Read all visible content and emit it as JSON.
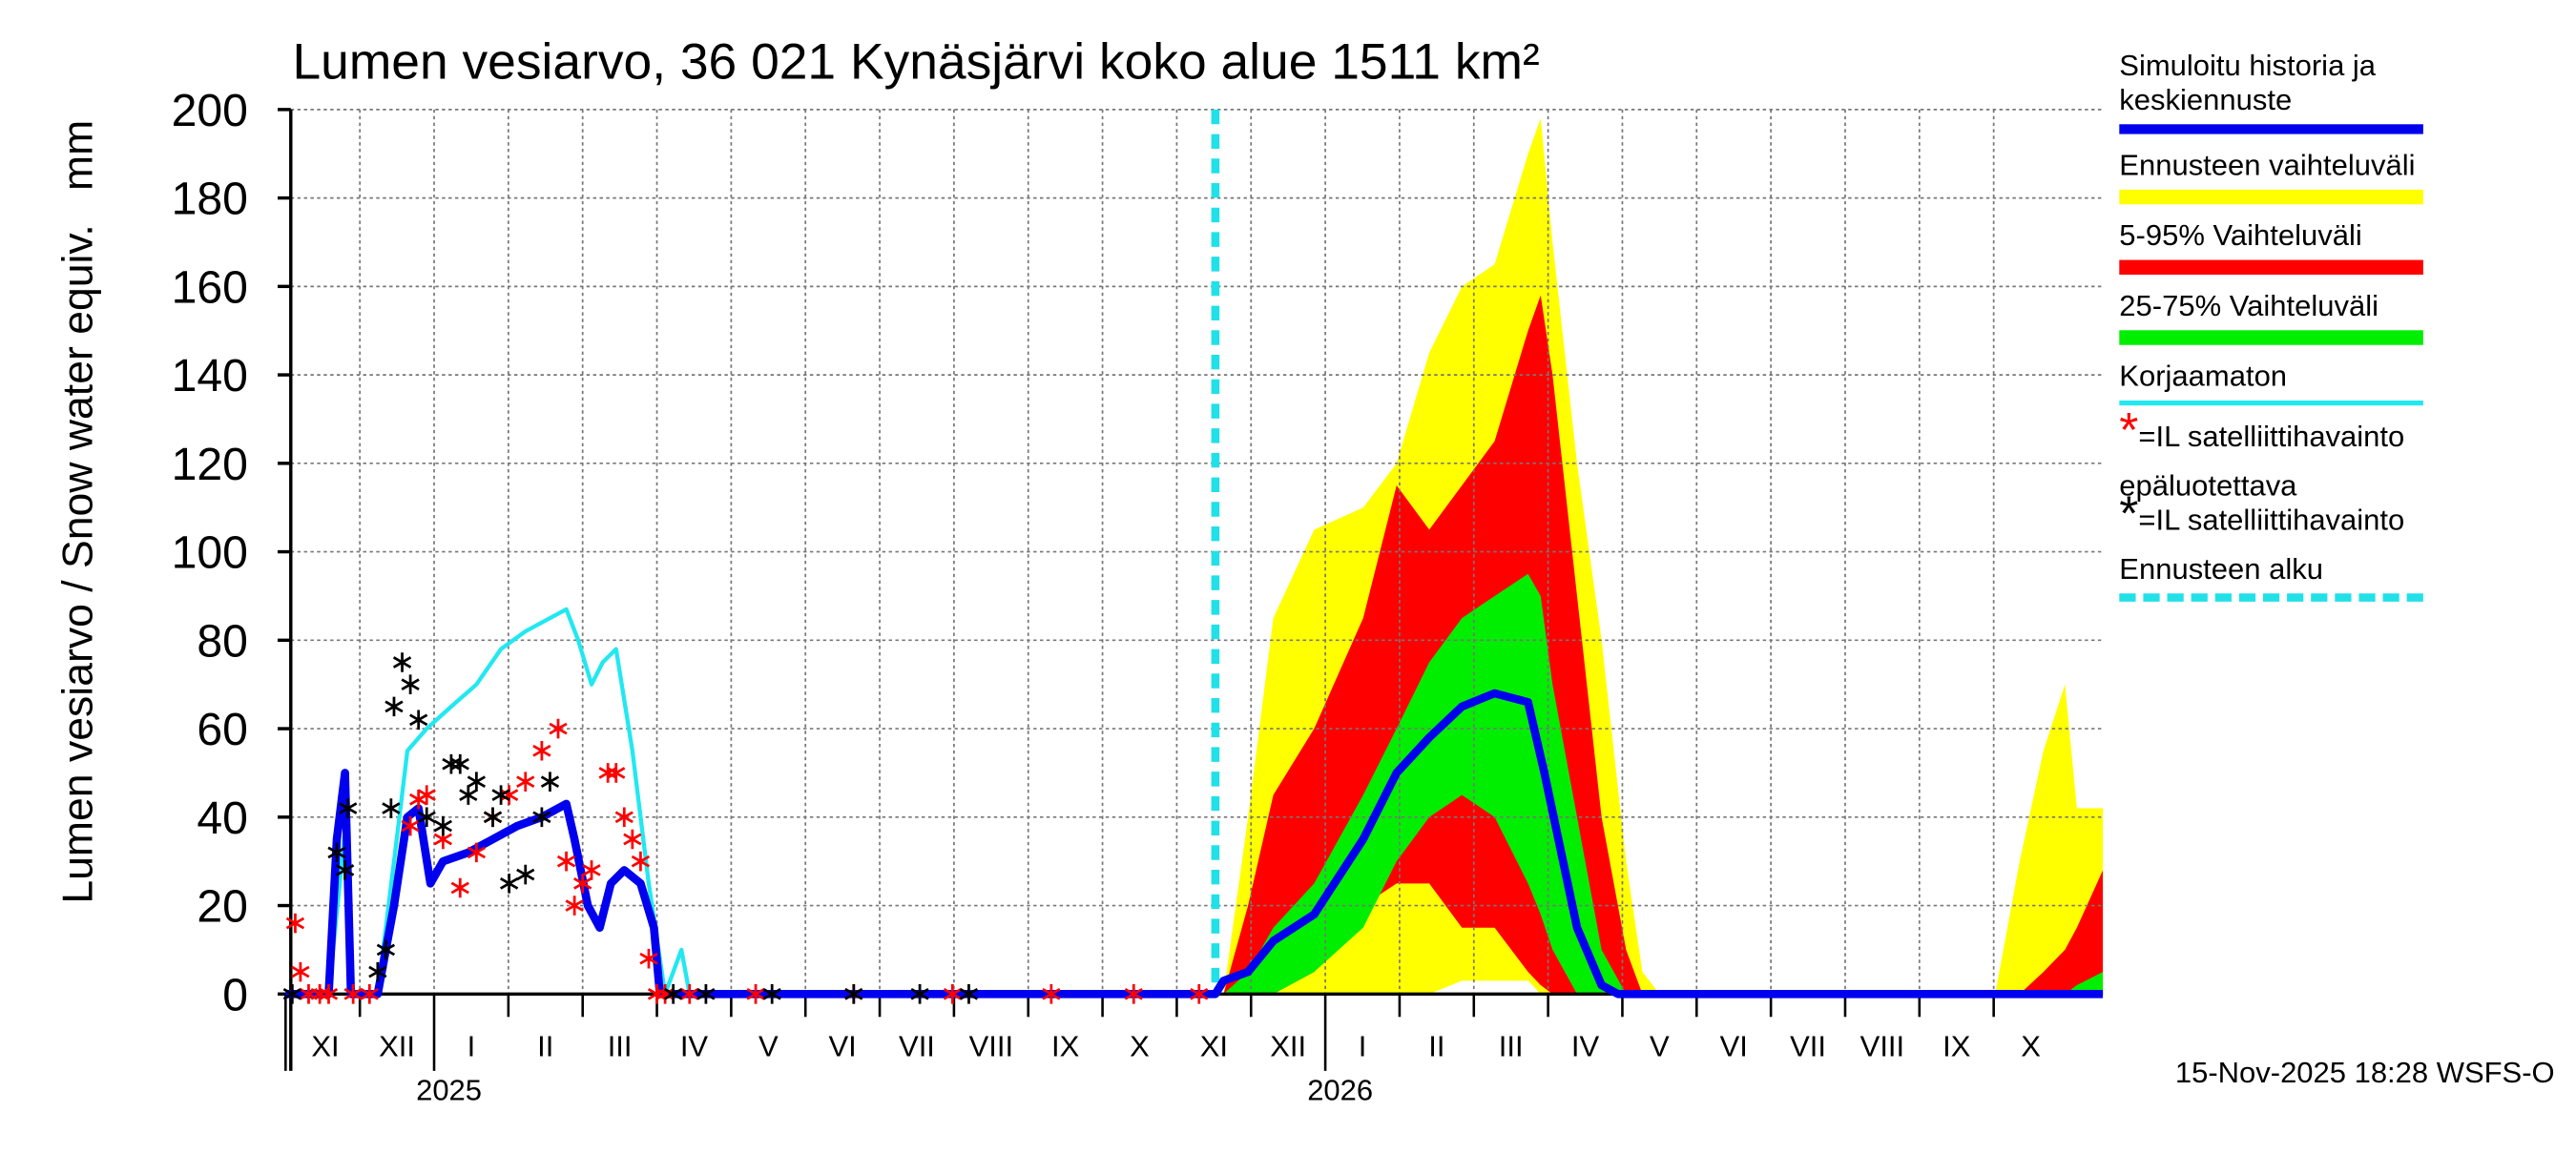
{
  "chart_data": {
    "type": "snow_forecast",
    "title": "Lumen vesiarvo, 36 021 Kynäsjärvi koko alue 1511 km²",
    "ylabel": "Lumen vesiarvo / Snow water equiv.",
    "yunit": "mm",
    "footer": "15-Nov-2025 18:28 WSFS-O",
    "categories": [
      "XI",
      "XII",
      "I",
      "II",
      "III",
      "IV",
      "V",
      "VI",
      "VII",
      "VIII",
      "IX",
      "X",
      "XI",
      "XII",
      "I",
      "II",
      "III",
      "IV",
      "V",
      "VI",
      "VII",
      "VIII",
      "IX",
      "X"
    ],
    "years": [
      "2025",
      "2026"
    ],
    "xlim": [
      0.07,
      24.47
    ],
    "ylim": [
      0,
      200
    ],
    "yticks": [
      0,
      20,
      40,
      60,
      80,
      100,
      120,
      140,
      160,
      180,
      200
    ],
    "grid": true,
    "forecast_start": {
      "name": "Ennusteen alku",
      "x": 12.52,
      "color": "#22e0e8"
    },
    "bands": [
      {
        "name": "Ennusteen vaihteluväli",
        "color": "#ffff00",
        "x": [
          12.52,
          12.63,
          12.96,
          13.3,
          13.85,
          14.51,
          14.96,
          15.4,
          15.84,
          16.28,
          16.73,
          16.9,
          17.06,
          17.39,
          17.72,
          18.05,
          18.27,
          18.5,
          23.02,
          23.35,
          23.67,
          23.96,
          24.12,
          24.47
        ],
        "values": [
          0,
          0,
          40,
          85,
          105,
          110,
          120,
          145,
          160,
          165,
          190,
          198,
          170,
          120,
          80,
          30,
          5,
          0,
          0,
          30,
          55,
          70,
          42,
          42
        ],
        "low": [
          0,
          0,
          0,
          0,
          0,
          0,
          0,
          0,
          3,
          3,
          3,
          0,
          0,
          0,
          0,
          0,
          0,
          0,
          0,
          0,
          0,
          0,
          0,
          0
        ]
      },
      {
        "name": "5-95% Vaihteluväli",
        "color": "#ff0000",
        "x": [
          12.52,
          12.63,
          12.96,
          13.3,
          13.85,
          14.51,
          14.96,
          15.4,
          15.84,
          16.28,
          16.73,
          16.9,
          17.06,
          17.39,
          17.72,
          18.05,
          18.27,
          18.5,
          23.02,
          23.35,
          23.67,
          23.96,
          24.12,
          24.47
        ],
        "values": [
          0,
          0,
          20,
          45,
          60,
          85,
          115,
          105,
          115,
          125,
          150,
          158,
          140,
          90,
          40,
          10,
          0,
          0,
          0,
          0,
          5,
          10,
          15,
          28
        ],
        "low": [
          0,
          0,
          0,
          0,
          5,
          20,
          25,
          25,
          15,
          15,
          5,
          2,
          0,
          0,
          0,
          0,
          0,
          0,
          0,
          0,
          0,
          0,
          0,
          0
        ]
      },
      {
        "name": "25-75% Vaihteluväli",
        "color": "#00ee00",
        "x": [
          12.52,
          12.63,
          12.96,
          13.3,
          13.85,
          14.51,
          14.96,
          15.4,
          15.84,
          16.28,
          16.73,
          16.9,
          17.06,
          17.39,
          17.72,
          18.05,
          18.27,
          18.5,
          23.02,
          23.35,
          23.67,
          23.96,
          24.12,
          24.47
        ],
        "values": [
          0,
          0,
          5,
          15,
          25,
          45,
          60,
          75,
          85,
          90,
          95,
          90,
          70,
          40,
          10,
          0,
          0,
          0,
          0,
          0,
          0,
          0,
          2,
          5
        ],
        "low": [
          0,
          0,
          0,
          0,
          5,
          15,
          30,
          40,
          45,
          40,
          25,
          18,
          10,
          0,
          0,
          0,
          0,
          0,
          0,
          0,
          0,
          0,
          0,
          0
        ]
      }
    ],
    "series": [
      {
        "name": "Simuloitu historia ja keskiennuste",
        "color": "#0000ee",
        "width": 5,
        "x": [
          0.0,
          0.58,
          0.69,
          0.8,
          0.88,
          1.24,
          1.46,
          1.64,
          1.79,
          1.95,
          2.12,
          2.46,
          2.79,
          3.12,
          3.45,
          3.78,
          3.89,
          4.07,
          4.23,
          4.38,
          4.56,
          4.78,
          4.96,
          5.04,
          12.52,
          12.63,
          12.96,
          13.3,
          13.85,
          14.51,
          14.96,
          15.4,
          15.84,
          16.28,
          16.73,
          16.95,
          17.39,
          17.72,
          17.94,
          24.47
        ],
        "values": [
          0,
          0,
          35,
          50,
          0,
          0,
          20,
          40,
          42,
          25,
          30,
          32,
          35,
          38,
          40,
          43,
          35,
          20,
          15,
          25,
          28,
          25,
          15,
          0,
          0,
          3,
          5,
          12,
          18,
          35,
          50,
          58,
          65,
          68,
          66,
          50,
          15,
          2,
          0,
          0
        ]
      },
      {
        "name": "Korjaamaton",
        "color": "#22e8f0",
        "width": 2.5,
        "x": [
          0.58,
          0.8,
          0.88,
          1.24,
          1.46,
          1.64,
          1.9,
          2.23,
          2.57,
          2.9,
          3.23,
          3.56,
          3.78,
          3.94,
          4.12,
          4.27,
          4.45,
          4.67,
          4.89,
          5.11,
          5.33,
          5.44
        ],
        "values": [
          0,
          37,
          0,
          0,
          30,
          55,
          60,
          65,
          70,
          78,
          82,
          85,
          87,
          80,
          70,
          75,
          78,
          55,
          25,
          0,
          10,
          0
        ]
      }
    ],
    "points": [
      {
        "name": "=IL satelliittihavainto",
        "color": "#ff0000",
        "x": [
          0.13,
          0.2,
          0.31,
          0.46,
          0.58,
          0.91,
          1.13,
          1.68,
          1.79,
          1.9,
          2.12,
          2.35,
          2.57,
          2.79,
          3.01,
          3.23,
          3.45,
          3.67,
          3.78,
          3.89,
          4.0,
          4.12,
          4.34,
          4.45,
          4.56,
          4.67,
          4.78,
          4.89,
          5.0,
          5.11,
          5.44,
          6.33,
          7.65,
          8.98,
          10.31,
          11.42,
          12.3
        ],
        "values": [
          16,
          5,
          0,
          0,
          0,
          0,
          0,
          38,
          44,
          45,
          35,
          24,
          32,
          40,
          45,
          48,
          55,
          60,
          30,
          20,
          25,
          28,
          50,
          50,
          40,
          35,
          30,
          8,
          0,
          0,
          0,
          0,
          0,
          0,
          0,
          0,
          0
        ]
      },
      {
        "name_prefix": "epäluotettava",
        "name": "=IL satelliittihavainto",
        "color": "#000000",
        "x": [
          0.09,
          0.69,
          0.8,
          0.84,
          1.24,
          1.35,
          1.42,
          1.46,
          1.57,
          1.68,
          1.79,
          1.9,
          2.12,
          2.23,
          2.35,
          2.46,
          2.57,
          2.79,
          2.9,
          3.01,
          3.23,
          3.45,
          3.56,
          5.22,
          5.66,
          6.55,
          7.65,
          8.54,
          9.2
        ],
        "values": [
          0,
          32,
          28,
          42,
          5,
          10,
          42,
          65,
          75,
          70,
          62,
          40,
          38,
          52,
          52,
          45,
          48,
          40,
          45,
          25,
          27,
          40,
          48,
          0,
          0,
          0,
          0,
          0,
          0
        ]
      }
    ]
  }
}
